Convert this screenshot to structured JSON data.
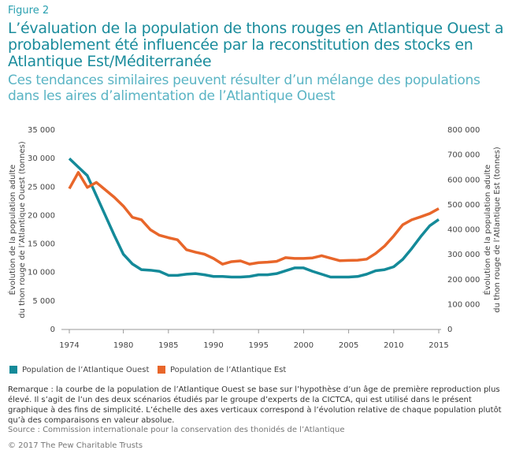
{
  "figure_label": "Figure 2",
  "chart_data": {
    "type": "line",
    "title": "L’évaluation de la population de thons rouges en Atlantique Ouest a probablement été influencée par la reconstitution des stocks en Atlantique Est/Méditerranée",
    "subtitle": "Ces tendances similaires peuvent résulter d’un mélange des populations dans les aires d’alimentation de l’Atlantique Ouest",
    "ylabel": [
      "Évolution de la population adulte",
      "du thon rouge de l’Atlantique Ouest (tonnes)"
    ],
    "y2label": [
      "Évolution de la population adulte",
      "du thon rouge de l’Atlantique Est (tonnes)"
    ],
    "x": [
      1974,
      1975,
      1976,
      1977,
      1978,
      1979,
      1980,
      1981,
      1982,
      1983,
      1984,
      1985,
      1986,
      1987,
      1988,
      1989,
      1990,
      1991,
      1992,
      1993,
      1994,
      1995,
      1996,
      1997,
      1998,
      1999,
      2000,
      2001,
      2002,
      2003,
      2004,
      2005,
      2006,
      2007,
      2008,
      2009,
      2010,
      2011,
      2012,
      2013,
      2014,
      2015
    ],
    "xlim": [
      1974,
      2015
    ],
    "xticks": [
      1974,
      1980,
      1985,
      1990,
      1995,
      2000,
      2005,
      2010,
      2015
    ],
    "ylim": [
      0,
      35000
    ],
    "yticks": [
      0,
      {
        "value": 5000,
        "label": "5 000"
      },
      {
        "value": 10000,
        "label": "10 000"
      },
      {
        "value": 15000,
        "label": "15 000"
      },
      {
        "value": 20000,
        "label": "20 000"
      },
      {
        "value": 25000,
        "label": "25 000"
      },
      {
        "value": 30000,
        "label": "30 000"
      },
      {
        "value": 35000,
        "label": "35 000"
      }
    ],
    "y2lim": [
      0,
      800000
    ],
    "y2ticks": [
      0,
      {
        "value": 100000,
        "label": "100 000"
      },
      {
        "value": 200000,
        "label": "200 000"
      },
      {
        "value": 300000,
        "label": "300 000"
      },
      {
        "value": 400000,
        "label": "400 000"
      },
      {
        "value": 500000,
        "label": "500 000"
      },
      {
        "value": 600000,
        "label": "600 000"
      },
      {
        "value": 700000,
        "label": "700 000"
      },
      {
        "value": 800000,
        "label": "800 000"
      }
    ],
    "series": [
      {
        "name": "Population de l’Atlantique Ouest",
        "color": "#148a99",
        "axis": "y",
        "values": [
          30000,
          28500,
          27000,
          23500,
          20000,
          16500,
          13200,
          11500,
          10500,
          10400,
          10200,
          9500,
          9500,
          9700,
          9800,
          9600,
          9300,
          9300,
          9200,
          9200,
          9300,
          9600,
          9600,
          9800,
          10300,
          10800,
          10800,
          10200,
          9700,
          9200,
          9200,
          9200,
          9300,
          9700,
          10300,
          10500,
          11000,
          12300,
          14200,
          16300,
          18200,
          19300
        ]
      },
      {
        "name": "Population de l’Atlantique Est",
        "color": "#e8662a",
        "axis": "y2",
        "values": [
          565000,
          630000,
          570000,
          590000,
          560000,
          530000,
          495000,
          450000,
          440000,
          400000,
          378000,
          368000,
          360000,
          320000,
          310000,
          302000,
          285000,
          262000,
          272000,
          275000,
          262000,
          268000,
          270000,
          273000,
          288000,
          285000,
          285000,
          287000,
          296000,
          286000,
          276000,
          277000,
          278000,
          282000,
          305000,
          335000,
          375000,
          420000,
          440000,
          452000,
          465000,
          485000
        ]
      }
    ]
  },
  "note": "Remarque : la courbe de la population de l’Atlantique Ouest se base sur l’hypothèse d’un âge de première reproduction plus élevé. Il s’agit de l’un des deux scénarios étudiés par le groupe d’experts de la CICTCA, qui est utilisé dans le présent graphique à des fins de simplicité. L’échelle des axes verticaux correspond à l’évolution relative de chaque population plutôt qu’à des comparaisons en valeur absolue.",
  "source": "Source : Commission internationale pour la conservation des thonidés de l’Atlantique",
  "copyright": "© 2017 The Pew Charitable Trusts"
}
